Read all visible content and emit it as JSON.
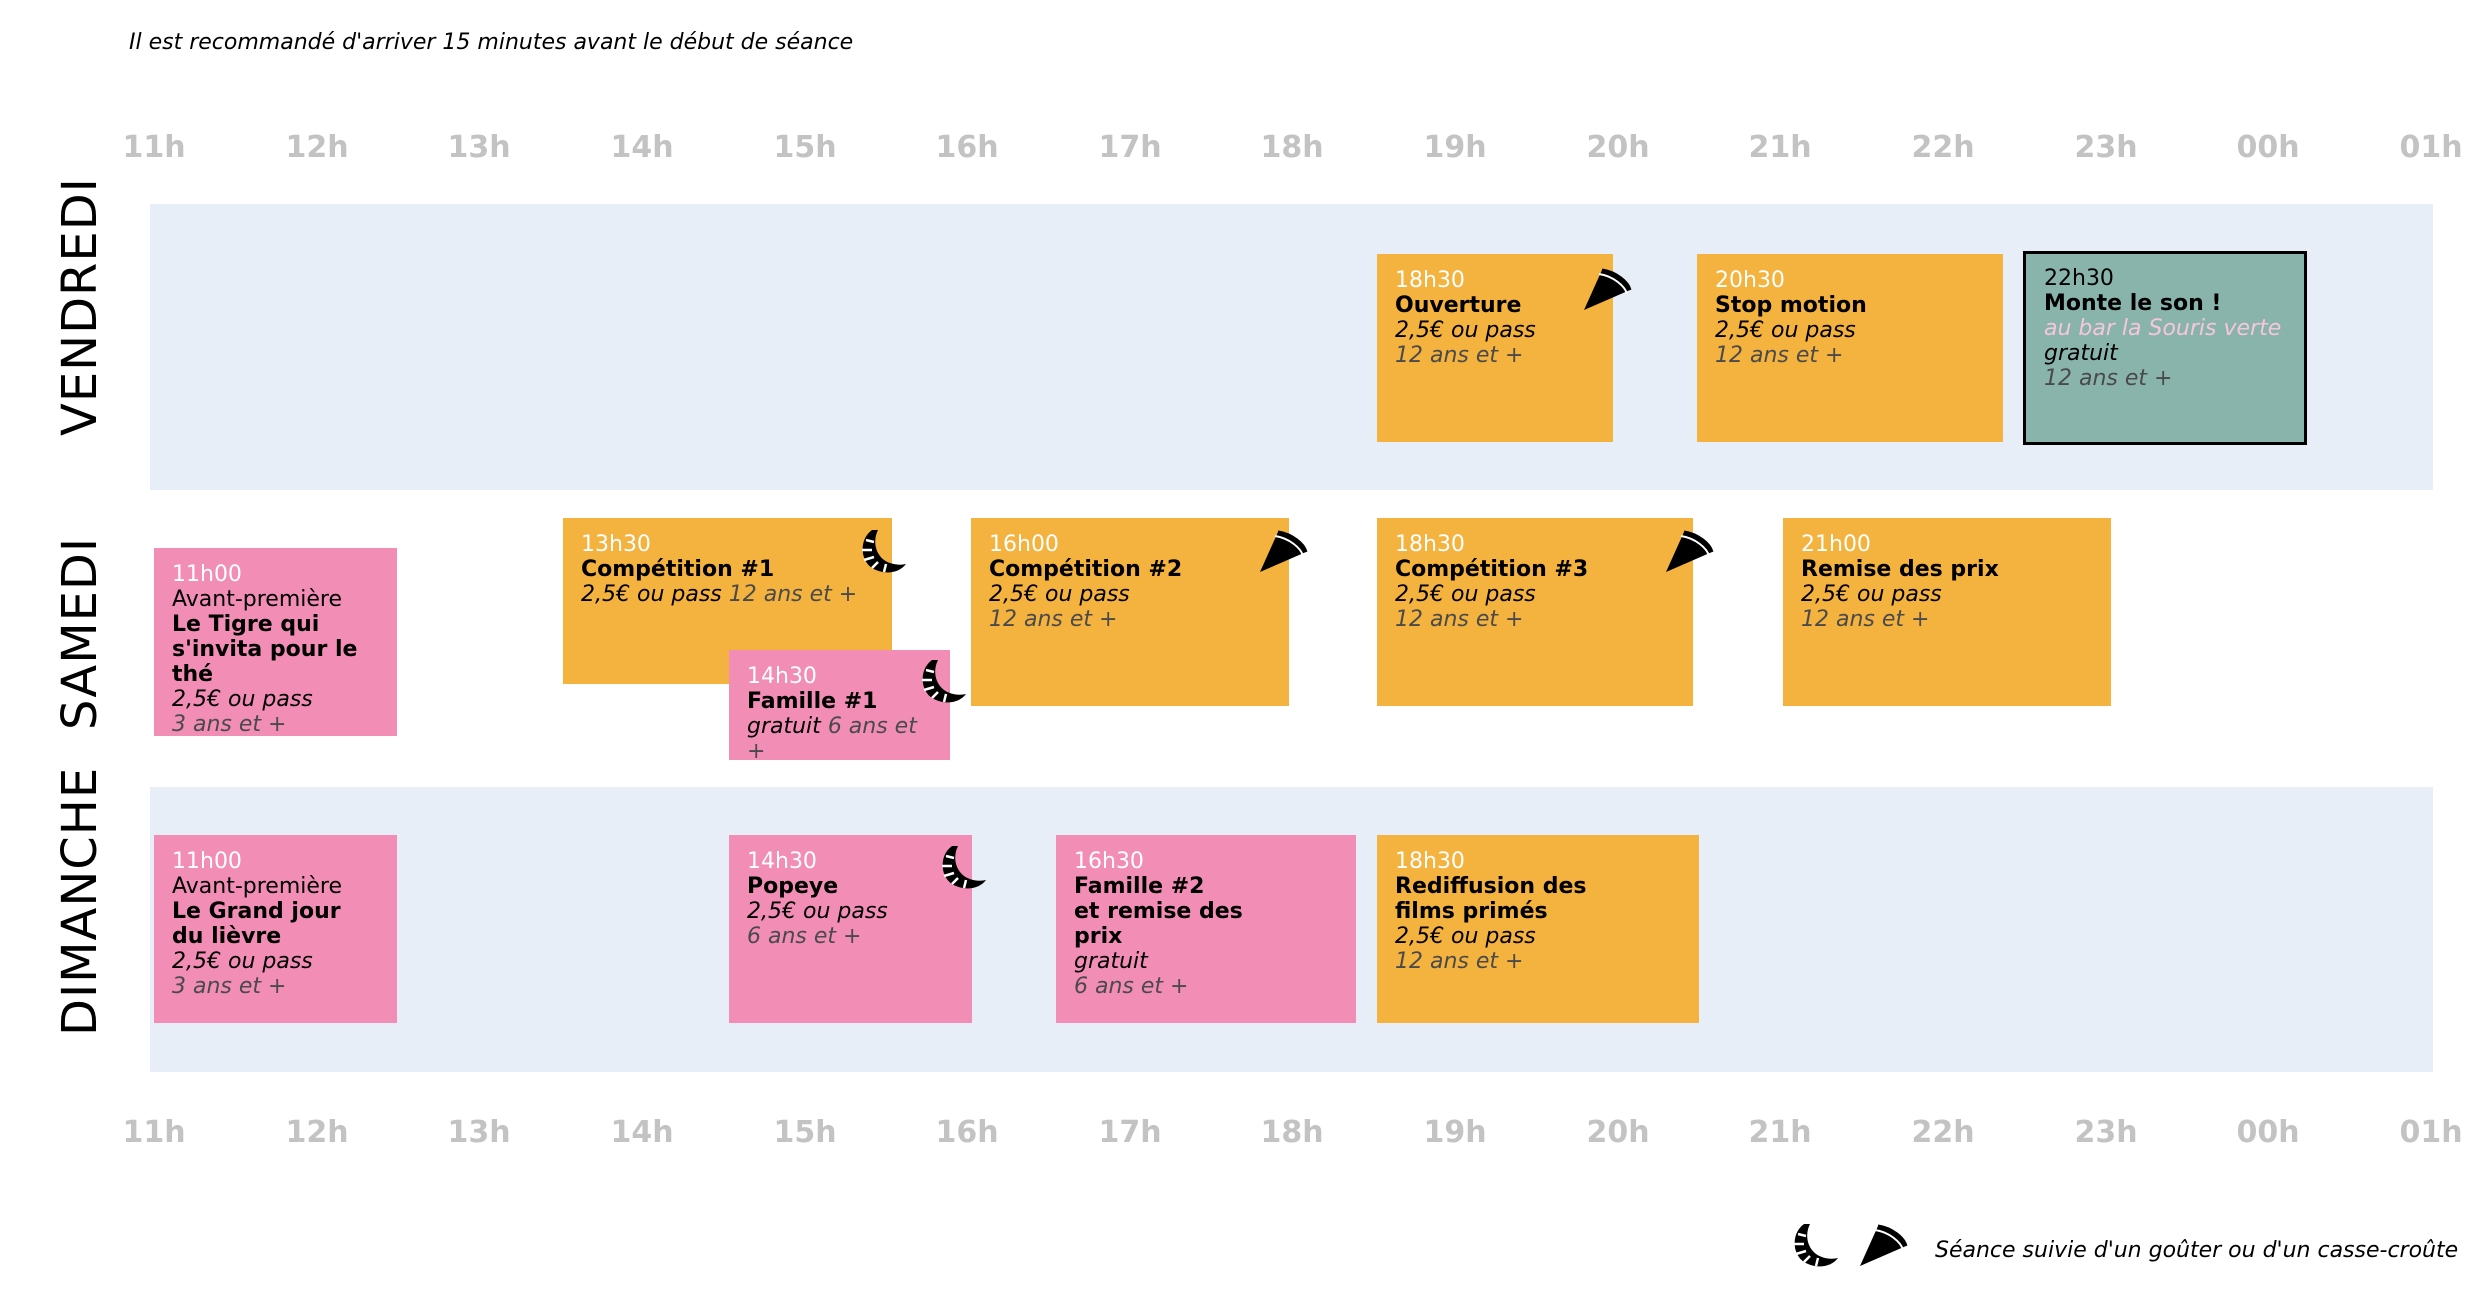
{
  "note": "Il est recommandé d'arriver 15 minutes avant le début de séance",
  "hours": [
    "11h",
    "12h",
    "13h",
    "14h",
    "15h",
    "16h",
    "17h",
    "18h",
    "19h",
    "20h",
    "21h",
    "22h",
    "23h",
    "00h",
    "01h"
  ],
  "days": {
    "vendredi": "VENDREDI",
    "samedi": "SAMEDI",
    "dimanche": "DIMANCHE"
  },
  "events": {
    "ven_ouverture": {
      "time": "18h30",
      "name": "Ouverture",
      "price": "2,5€ ou pass",
      "age": "12 ans et +",
      "icon": "pie-icon"
    },
    "ven_stop": {
      "time": "20h30",
      "name": "Stop motion",
      "price": "2,5€ ou pass",
      "age": "12 ans et +"
    },
    "ven_monte": {
      "time": "22h30",
      "name": "Monte le son !",
      "location": "au bar la Souris verte",
      "price": "gratuit",
      "age": "12 ans et +"
    },
    "sam_tigre": {
      "time": "11h00",
      "pre": "Avant-première",
      "name1": "Le Tigre qui",
      "name2": "s'invita pour le thé",
      "price": "2,5€ ou pass",
      "age": "3 ans et +"
    },
    "sam_comp1": {
      "time": "13h30",
      "name": "Compétition #1",
      "price": "2,5€ ou pass",
      "age": "12 ans et +",
      "icon": "croissant-icon"
    },
    "sam_famille1": {
      "time": "14h30",
      "name": "Famille #1",
      "price": "gratuit",
      "age": "6 ans et +",
      "icon": "croissant-icon"
    },
    "sam_comp2": {
      "time": "16h00",
      "name": "Compétition #2",
      "price": "2,5€ ou pass",
      "age": "12 ans et +",
      "icon": "pie-icon"
    },
    "sam_comp3": {
      "time": "18h30",
      "name": "Compétition #3",
      "price": "2,5€ ou pass",
      "age": "12 ans et +",
      "icon": "pie-icon"
    },
    "sam_remise": {
      "time": "21h00",
      "name": "Remise des prix",
      "price": "2,5€ ou pass",
      "age": "12 ans et +"
    },
    "dim_lievre": {
      "time": "11h00",
      "pre": "Avant-première",
      "name1": "Le Grand jour",
      "name2": "du lièvre",
      "price": "2,5€ ou pass",
      "age": "3 ans et +"
    },
    "dim_popeye": {
      "time": "14h30",
      "name": "Popeye",
      "price": "2,5€ ou pass",
      "age": "6 ans et +",
      "icon": "croissant-icon"
    },
    "dim_famille2": {
      "time": "16h30",
      "name1": "Famille #2",
      "name2": "et remise des",
      "name3": "prix",
      "price": "gratuit",
      "age": "6 ans et +"
    },
    "dim_rediff": {
      "time": "18h30",
      "name1": "Rediffusion des",
      "name2": "films primés",
      "price": "2,5€ ou pass",
      "age": "12 ans et +"
    }
  },
  "legend": {
    "text": "Séance suivie d'un goûter ou d'un casse-croûte"
  },
  "colors": {
    "orange": "#f4b23f",
    "pink": "#f28db6",
    "teal": "#88b4ac",
    "band": "#e8eef8",
    "hour_label": "#c3c3c3"
  }
}
